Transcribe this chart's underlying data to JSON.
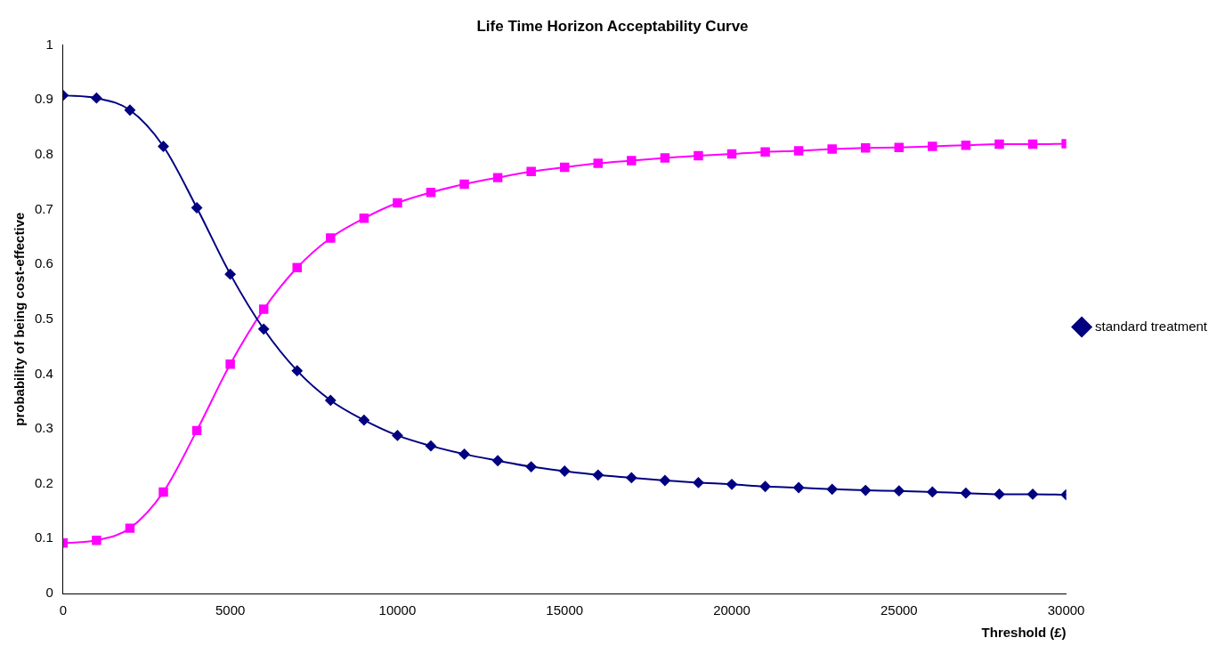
{
  "chart_data": {
    "type": "line",
    "title": "Life Time Horizon Acceptability Curve",
    "xlabel": "Threshold (£)",
    "ylabel": "probability of being cost-effective",
    "x": [
      0,
      1000,
      2000,
      3000,
      4000,
      5000,
      6000,
      7000,
      8000,
      9000,
      10000,
      11000,
      12000,
      13000,
      14000,
      15000,
      16000,
      17000,
      18000,
      19000,
      20000,
      21000,
      22000,
      23000,
      24000,
      25000,
      26000,
      27000,
      28000,
      29000,
      30000
    ],
    "series": [
      {
        "name": "standard treatment",
        "color": "#000080",
        "marker": "diamond",
        "values": [
          0.908,
          0.903,
          0.881,
          0.815,
          0.703,
          0.582,
          0.482,
          0.406,
          0.352,
          0.316,
          0.288,
          0.269,
          0.254,
          0.242,
          0.231,
          0.223,
          0.216,
          0.211,
          0.206,
          0.202,
          0.199,
          0.195,
          0.193,
          0.19,
          0.188,
          0.187,
          0.185,
          0.183,
          0.181,
          0.181,
          0.18
        ]
      },
      {
        "color": "#ff00ff",
        "marker": "square",
        "values": [
          0.092,
          0.097,
          0.119,
          0.185,
          0.297,
          0.418,
          0.518,
          0.594,
          0.648,
          0.684,
          0.712,
          0.731,
          0.746,
          0.758,
          0.769,
          0.777,
          0.784,
          0.789,
          0.794,
          0.798,
          0.801,
          0.805,
          0.807,
          0.81,
          0.812,
          0.813,
          0.815,
          0.817,
          0.819,
          0.819,
          0.82
        ]
      }
    ],
    "xlim": [
      0,
      30000
    ],
    "xticks": [
      0,
      5000,
      10000,
      15000,
      20000,
      25000,
      30000
    ],
    "ylim": [
      0,
      1
    ],
    "yticks": [
      0,
      0.1,
      0.2,
      0.3,
      0.4,
      0.5,
      0.6,
      0.7,
      0.8,
      0.9,
      1
    ],
    "grid": false,
    "legend": "right",
    "line_style": "solid"
  }
}
